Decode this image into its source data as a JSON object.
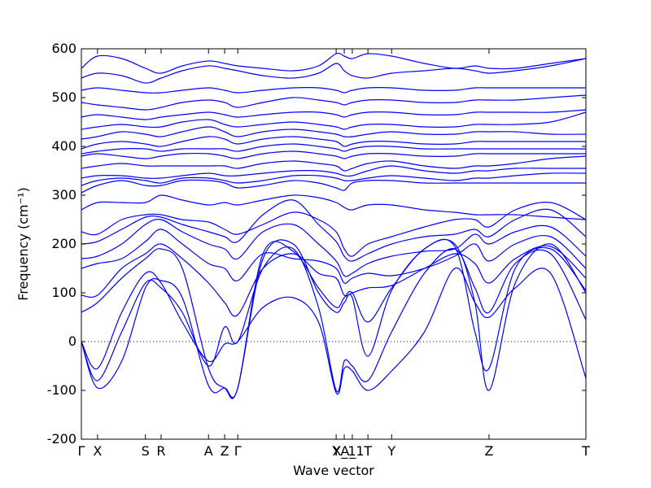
{
  "chart_data": {
    "type": "line",
    "title": "",
    "xlabel": "Wave vector",
    "ylabel": "Frequency (cm⁻¹)",
    "ylim": [
      -200,
      600
    ],
    "yticks": [
      -200,
      -100,
      0,
      100,
      200,
      300,
      400,
      500,
      600
    ],
    "xlim": [
      0,
      1
    ],
    "grid": false,
    "zero_line": true,
    "series_color": "#0000ff",
    "zero_line_color": "#0000ff",
    "xticks": [
      {
        "label": "Γ",
        "x": 0.0
      },
      {
        "label": "X",
        "x": 0.032
      },
      {
        "label": "S",
        "x": 0.127
      },
      {
        "label": "R",
        "x": 0.158
      },
      {
        "label": "A",
        "x": 0.252
      },
      {
        "label": "Z",
        "x": 0.284
      },
      {
        "label": "Γ",
        "x": 0.31
      },
      {
        "label": "Y",
        "x": 0.505
      },
      {
        "label": "X_1",
        "x": 0.521
      },
      {
        "label": "A_1",
        "x": 0.537
      },
      {
        "label": "T",
        "x": 0.568
      },
      {
        "label": "Y",
        "x": 0.615
      },
      {
        "label": "Z",
        "x": 0.808
      },
      {
        "label": "T",
        "x": 1.0
      }
    ],
    "x": [
      0.0,
      0.032,
      0.08,
      0.127,
      0.158,
      0.2,
      0.252,
      0.284,
      0.31,
      0.36,
      0.42,
      0.47,
      0.505,
      0.521,
      0.537,
      0.568,
      0.615,
      0.68,
      0.74,
      0.78,
      0.808,
      0.86,
      0.93,
      1.0
    ],
    "series": [
      {
        "values": [
          0,
          -55,
          60,
          140,
          120,
          40,
          -40,
          -5,
          0,
          70,
          90,
          40,
          -105,
          -55,
          -60,
          -100,
          -60,
          20,
          150,
          80,
          50,
          110,
          140,
          -75
        ]
      },
      {
        "values": [
          0,
          -80,
          20,
          120,
          110,
          60,
          -50,
          30,
          0,
          150,
          190,
          70,
          -100,
          -40,
          -50,
          -80,
          20,
          140,
          190,
          110,
          60,
          160,
          180,
          45
        ]
      },
      {
        "values": [
          0,
          -95,
          -40,
          110,
          125,
          90,
          -90,
          -95,
          -95,
          170,
          200,
          100,
          60,
          80,
          90,
          -30,
          105,
          190,
          200,
          80,
          -100,
          120,
          200,
          100
        ]
      },
      {
        "values": [
          60,
          80,
          130,
          170,
          190,
          150,
          -55,
          -95,
          -95,
          180,
          185,
          110,
          70,
          90,
          100,
          40,
          110,
          190,
          195,
          20,
          -55,
          150,
          190,
          105
        ]
      },
      {
        "values": [
          95,
          95,
          150,
          180,
          200,
          170,
          120,
          80,
          55,
          150,
          180,
          140,
          130,
          95,
          100,
          110,
          115,
          150,
          180,
          160,
          120,
          170,
          195,
          130
        ]
      },
      {
        "values": [
          150,
          160,
          170,
          205,
          230,
          200,
          160,
          150,
          125,
          180,
          170,
          165,
          150,
          120,
          130,
          140,
          135,
          150,
          175,
          200,
          165,
          200,
          215,
          150
        ]
      },
      {
        "values": [
          170,
          175,
          200,
          240,
          250,
          225,
          200,
          190,
          170,
          225,
          240,
          200,
          165,
          135,
          140,
          160,
          175,
          185,
          190,
          220,
          200,
          225,
          235,
          175
        ]
      },
      {
        "values": [
          200,
          205,
          230,
          255,
          255,
          240,
          225,
          215,
          205,
          260,
          290,
          240,
          205,
          175,
          165,
          180,
          200,
          215,
          220,
          230,
          215,
          250,
          270,
          215
        ]
      },
      {
        "values": [
          225,
          220,
          250,
          260,
          260,
          250,
          245,
          230,
          220,
          240,
          265,
          250,
          225,
          190,
          175,
          200,
          215,
          235,
          250,
          250,
          235,
          270,
          285,
          250
        ]
      },
      {
        "values": [
          270,
          285,
          285,
          285,
          300,
          290,
          280,
          285,
          280,
          290,
          300,
          295,
          285,
          275,
          270,
          280,
          280,
          270,
          265,
          260,
          260,
          260,
          255,
          250
        ]
      },
      {
        "values": [
          305,
          320,
          330,
          320,
          320,
          330,
          330,
          325,
          315,
          320,
          330,
          325,
          315,
          310,
          325,
          330,
          330,
          325,
          325,
          325,
          325,
          325,
          325,
          325
        ]
      },
      {
        "values": [
          320,
          330,
          335,
          330,
          325,
          335,
          335,
          330,
          325,
          330,
          340,
          340,
          335,
          330,
          330,
          335,
          340,
          335,
          330,
          335,
          335,
          340,
          345,
          345
        ]
      },
      {
        "values": [
          335,
          340,
          340,
          335,
          335,
          340,
          345,
          340,
          340,
          345,
          350,
          350,
          345,
          340,
          340,
          350,
          360,
          350,
          345,
          350,
          350,
          355,
          355,
          355
        ]
      },
      {
        "values": [
          355,
          360,
          365,
          360,
          360,
          360,
          360,
          360,
          355,
          365,
          370,
          365,
          360,
          350,
          355,
          365,
          370,
          360,
          355,
          360,
          360,
          365,
          375,
          380
        ]
      },
      {
        "values": [
          380,
          385,
          380,
          375,
          380,
          385,
          385,
          380,
          375,
          385,
          390,
          385,
          380,
          375,
          380,
          385,
          385,
          380,
          380,
          385,
          385,
          385,
          385,
          385
        ]
      },
      {
        "values": [
          385,
          390,
          395,
          395,
          390,
          395,
          395,
          395,
          390,
          400,
          405,
          400,
          395,
          390,
          395,
          400,
          400,
          395,
          395,
          395,
          395,
          395,
          395,
          395
        ]
      },
      {
        "values": [
          395,
          405,
          410,
          405,
          400,
          410,
          420,
          415,
          405,
          415,
          420,
          415,
          410,
          400,
          405,
          410,
          410,
          405,
          405,
          410,
          410,
          410,
          410,
          410
        ]
      },
      {
        "values": [
          415,
          420,
          430,
          425,
          420,
          430,
          440,
          430,
          420,
          430,
          435,
          430,
          425,
          420,
          420,
          425,
          430,
          425,
          425,
          430,
          430,
          430,
          425,
          425
        ]
      },
      {
        "values": [
          435,
          440,
          445,
          440,
          440,
          450,
          455,
          445,
          440,
          445,
          450,
          445,
          440,
          435,
          440,
          445,
          445,
          440,
          440,
          445,
          445,
          445,
          450,
          470
        ]
      },
      {
        "values": [
          460,
          465,
          460,
          455,
          460,
          465,
          470,
          465,
          460,
          465,
          470,
          470,
          465,
          460,
          465,
          470,
          470,
          465,
          465,
          470,
          470,
          470,
          470,
          475
        ]
      },
      {
        "values": [
          490,
          485,
          480,
          475,
          480,
          490,
          495,
          490,
          480,
          490,
          500,
          495,
          490,
          485,
          490,
          495,
          495,
          490,
          490,
          495,
          495,
          495,
          500,
          505
        ]
      },
      {
        "values": [
          515,
          520,
          515,
          510,
          510,
          515,
          520,
          515,
          510,
          515,
          520,
          520,
          515,
          510,
          515,
          520,
          520,
          515,
          515,
          520,
          520,
          520,
          520,
          520
        ]
      },
      {
        "values": [
          540,
          550,
          545,
          530,
          540,
          555,
          565,
          560,
          555,
          545,
          540,
          550,
          570,
          555,
          545,
          540,
          550,
          555,
          560,
          555,
          550,
          555,
          565,
          580
        ]
      },
      {
        "values": [
          560,
          585,
          580,
          560,
          550,
          565,
          575,
          570,
          565,
          560,
          555,
          565,
          590,
          585,
          580,
          590,
          585,
          570,
          560,
          565,
          560,
          560,
          570,
          580
        ]
      }
    ]
  }
}
